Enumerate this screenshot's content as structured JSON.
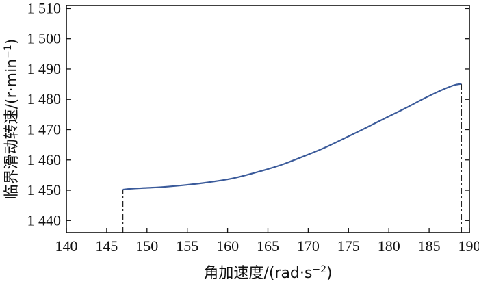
{
  "chart_data": {
    "type": "line",
    "title": "",
    "xlabel": "角加速度/(rad·s",
    "xlabel_sup": "−2",
    "xlabel_tail": ")",
    "ylabel": "临界滑动转速/(r·min",
    "ylabel_sup": "−1",
    "ylabel_tail": ")",
    "xlim": [
      140,
      190
    ],
    "ylim": [
      1436,
      1511
    ],
    "x_ticks": [
      140,
      145,
      150,
      155,
      160,
      165,
      170,
      175,
      180,
      185,
      190
    ],
    "x_tick_labels": [
      "140",
      "145",
      "150",
      "155",
      "160",
      "165",
      "170",
      "175",
      "180",
      "185",
      "190"
    ],
    "y_ticks": [
      1440,
      1450,
      1460,
      1470,
      1480,
      1490,
      1500,
      1510
    ],
    "y_tick_labels": [
      "1 440",
      "1 450",
      "1 460",
      "1 470",
      "1 480",
      "1 490",
      "1 500",
      "1 510"
    ],
    "grid": false,
    "series": [
      {
        "color": "#3a5a9a",
        "x": [
          147,
          148,
          150,
          152,
          155,
          157,
          160,
          162,
          165,
          167,
          170,
          172,
          175,
          177,
          180,
          182,
          184,
          186,
          188,
          189
        ],
        "y": [
          1450.2,
          1450.5,
          1450.8,
          1451.1,
          1451.8,
          1452.4,
          1453.6,
          1454.8,
          1457.0,
          1458.7,
          1461.8,
          1464.0,
          1467.8,
          1470.4,
          1474.4,
          1477.0,
          1479.8,
          1482.4,
          1484.6,
          1485.1
        ]
      }
    ],
    "markers": [
      {
        "x": 147,
        "from_y": 1436,
        "to_y": 1450.2,
        "style": "dash-dot"
      },
      {
        "x": 189,
        "from_y": 1436,
        "to_y": 1485.1,
        "style": "dash-dot"
      }
    ],
    "line_color": "#3a5a9a",
    "axis_color": "#111111"
  }
}
